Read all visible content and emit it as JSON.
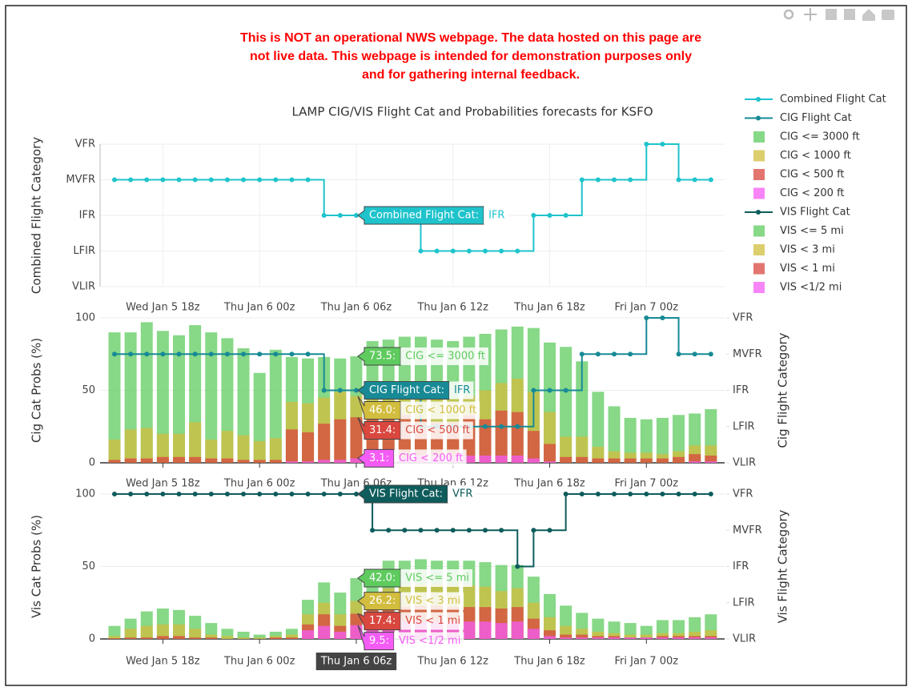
{
  "notice": [
    "This is NOT an operational NWS webpage. The data hosted on this page are",
    "not live data. This webpage is intended for demonstration purposes only",
    "and for gathering internal feedback."
  ],
  "chart_data": [
    {
      "type": "line",
      "title": "LAMP CIG/VIS Flight Cat and Probabilities forecasts for KSFO",
      "ylabel": "Combined Flight Category",
      "categories": [
        null,
        null,
        null,
        "Wed Jan 5 18z",
        null,
        null,
        null,
        null,
        null,
        "Thu Jan 6 00z",
        null,
        null,
        null,
        null,
        null,
        "Thu Jan 6 06z",
        null,
        null,
        null,
        null,
        null,
        "Thu Jan 6 12z",
        null,
        null,
        null,
        null,
        null,
        "Thu Jan 6 18z",
        null,
        null,
        null,
        null,
        null,
        "Fri Jan 7 00z",
        null,
        null,
        null,
        null
      ],
      "ylim": [
        0,
        4
      ],
      "yticks": [
        {
          "value": 0,
          "label": "VLIR"
        },
        {
          "value": 1,
          "label": "LFIR"
        },
        {
          "value": 2,
          "label": "IFR"
        },
        {
          "value": 3,
          "label": "MVFR"
        },
        {
          "value": 4,
          "label": "VFR"
        }
      ],
      "grid": true,
      "series": [
        {
          "name": "Combined Flight Cat",
          "type": "line",
          "color": "#1fc3cc",
          "hover_label": "Combined Flight Cat:",
          "values": [
            3,
            3,
            3,
            3,
            3,
            3,
            3,
            3,
            3,
            3,
            3,
            3,
            3,
            2,
            2,
            2,
            2,
            2,
            2,
            1,
            1,
            1,
            1,
            1,
            1,
            1,
            2,
            2,
            2,
            3,
            3,
            3,
            3,
            4,
            4,
            3,
            3,
            3
          ]
        }
      ]
    },
    {
      "type": "bar",
      "ylabel": "Cig Cat Probs (%)",
      "y2label": "Cig Flight Category",
      "categories": [
        null,
        null,
        null,
        "Wed Jan 5 18z",
        null,
        null,
        null,
        null,
        null,
        "Thu Jan 6 00z",
        null,
        null,
        null,
        null,
        null,
        "Thu Jan 6 06z",
        null,
        null,
        null,
        null,
        null,
        "Thu Jan 6 12z",
        null,
        null,
        null,
        null,
        null,
        "Thu Jan 6 18z",
        null,
        null,
        null,
        null,
        null,
        "Fri Jan 7 00z",
        null,
        null,
        null,
        null
      ],
      "ylim": [
        0,
        100
      ],
      "yticks": [
        0,
        50,
        100
      ],
      "y2lim": [
        0,
        4
      ],
      "y2ticks": [
        {
          "value": 0,
          "label": "VLIR"
        },
        {
          "value": 1,
          "label": "LFIR"
        },
        {
          "value": 2,
          "label": "IFR"
        },
        {
          "value": 3,
          "label": "MVFR"
        },
        {
          "value": 4,
          "label": "VFR"
        }
      ],
      "grid": true,
      "series": [
        {
          "name": "CIG Flight Cat",
          "type": "line",
          "axis": "y2",
          "color": "#178a96",
          "hover_label": "CIG Flight Cat:",
          "values": [
            3,
            3,
            3,
            3,
            3,
            3,
            3,
            3,
            3,
            3,
            3,
            3,
            3,
            2,
            2,
            2,
            2,
            2,
            2,
            1,
            1,
            1,
            1,
            1,
            1,
            1,
            2,
            2,
            2,
            3,
            3,
            3,
            3,
            4,
            4,
            3,
            3,
            3
          ]
        },
        {
          "name": "CIG <= 3000 ft",
          "type": "bar",
          "color": "#5fcb5f",
          "hover_label": "73.5:",
          "values": [
            90,
            90,
            97,
            91,
            88,
            95,
            90,
            86,
            79,
            62,
            78,
            73,
            72,
            73,
            72,
            73.5,
            84,
            85,
            87,
            87,
            85,
            84,
            87,
            89,
            92,
            94,
            93,
            83,
            80,
            70,
            49,
            39,
            31,
            30,
            31,
            33,
            34,
            37
          ]
        },
        {
          "name": "CIG < 1000 ft",
          "type": "bar",
          "color": "#d2bd3e",
          "hover_label": "46.0:",
          "values": [
            16,
            23,
            24,
            20,
            20,
            28,
            16,
            22,
            19,
            15,
            17,
            42,
            41,
            45,
            49,
            46,
            50,
            50,
            48,
            45,
            44,
            44,
            46,
            50,
            55,
            58,
            49,
            35,
            18,
            18,
            11,
            8,
            7,
            7,
            6,
            8,
            12,
            12
          ]
        },
        {
          "name": "CIG < 500 ft",
          "type": "bar",
          "color": "#d9473f",
          "hover_label": "31.4:",
          "values": [
            2,
            3,
            3,
            4,
            4,
            4,
            3,
            3,
            2,
            2,
            2,
            23,
            21,
            27,
            30,
            31.4,
            33,
            35,
            33,
            30,
            28,
            28,
            33,
            30,
            36,
            35,
            22,
            13,
            4,
            4,
            3,
            3,
            3,
            3,
            3,
            4,
            6,
            5
          ]
        },
        {
          "name": "CIG < 200 ft",
          "type": "bar",
          "color": "#f55cf5",
          "hover_label": "3.1:",
          "values": [
            0,
            0,
            0,
            0,
            0,
            0,
            0,
            0,
            0,
            0,
            0,
            1,
            1,
            2,
            2,
            3.1,
            4,
            4,
            4,
            5,
            5,
            5,
            5,
            5,
            5,
            5,
            3,
            1,
            0,
            0,
            0,
            0,
            0,
            0,
            0,
            0,
            1,
            1
          ]
        }
      ]
    },
    {
      "type": "bar",
      "ylabel": "Vis Cat Probs (%)",
      "y2label": "Vis Flight Category",
      "categories": [
        null,
        null,
        null,
        "Wed Jan 5 18z",
        null,
        null,
        null,
        null,
        null,
        "Thu Jan 6 00z",
        null,
        null,
        null,
        null,
        null,
        "Thu Jan 6 06z",
        null,
        null,
        null,
        null,
        null,
        "Thu Jan 6 12z",
        null,
        null,
        null,
        null,
        null,
        "Thu Jan 6 18z",
        null,
        null,
        null,
        null,
        null,
        "Fri Jan 7 00z",
        null,
        null,
        null,
        null
      ],
      "ylim": [
        0,
        100
      ],
      "yticks": [
        0,
        50,
        100
      ],
      "y2lim": [
        0,
        4
      ],
      "y2ticks": [
        {
          "value": 0,
          "label": "VLIR"
        },
        {
          "value": 1,
          "label": "LFIR"
        },
        {
          "value": 2,
          "label": "IFR"
        },
        {
          "value": 3,
          "label": "MVFR"
        },
        {
          "value": 4,
          "label": "VFR"
        }
      ],
      "grid": true,
      "hover_x": "Thu Jan 6 06z",
      "series": [
        {
          "name": "VIS Flight Cat",
          "type": "line",
          "axis": "y2",
          "color": "#0e5c5c",
          "hover_label": "VIS Flight Cat:",
          "values": [
            4,
            4,
            4,
            4,
            4,
            4,
            4,
            4,
            4,
            4,
            4,
            4,
            4,
            4,
            4,
            4,
            3,
            3,
            3,
            3,
            3,
            3,
            3,
            3,
            3,
            2,
            3,
            3,
            4,
            4,
            4,
            4,
            4,
            4,
            4,
            4,
            4,
            4
          ]
        },
        {
          "name": "VIS <= 5 mi",
          "type": "bar",
          "color": "#5fcb5f",
          "hover_label": "42.0:",
          "values": [
            9,
            14,
            19,
            21,
            20,
            16,
            11,
            7,
            5,
            3,
            5,
            7,
            27,
            39,
            32,
            42,
            45,
            54,
            54,
            55,
            54,
            54,
            54,
            53,
            51,
            51,
            43,
            31,
            23,
            18,
            14,
            12,
            11,
            9,
            13,
            13,
            15,
            17
          ]
        },
        {
          "name": "VIS < 3 mi",
          "type": "bar",
          "color": "#d2bd3e",
          "hover_label": "26.2:",
          "values": [
            2,
            7,
            9,
            10,
            10,
            7,
            3,
            2,
            1,
            1,
            2,
            3,
            17,
            25,
            17,
            26.2,
            30,
            35,
            37,
            38,
            38,
            37,
            37,
            36,
            33,
            35,
            25,
            15,
            9,
            7,
            5,
            4,
            3,
            3,
            4,
            4,
            5,
            6
          ]
        },
        {
          "name": "VIS < 1 mi",
          "type": "bar",
          "color": "#d9473f",
          "hover_label": "17.4:",
          "values": [
            0.5,
            1,
            1,
            2,
            2,
            1,
            1,
            0,
            0,
            0,
            1,
            1,
            10,
            17,
            9,
            17.4,
            20,
            22,
            22,
            23,
            23,
            22,
            22,
            22,
            21,
            22,
            14,
            6,
            3,
            3,
            2,
            2,
            1,
            1,
            2,
            2,
            2,
            2
          ]
        },
        {
          "name": "VIS <1/2 mi",
          "type": "bar",
          "color": "#f55cf5",
          "hover_label": "9.5:",
          "values": [
            0,
            0,
            0,
            0,
            0,
            0,
            0,
            0,
            0,
            0,
            0,
            0,
            6,
            9,
            5,
            9.5,
            11,
            12,
            12,
            12,
            12,
            12,
            12,
            12,
            11,
            12,
            7,
            2,
            1,
            1,
            1,
            1,
            1,
            1,
            1,
            1,
            1,
            1
          ]
        }
      ]
    }
  ]
}
